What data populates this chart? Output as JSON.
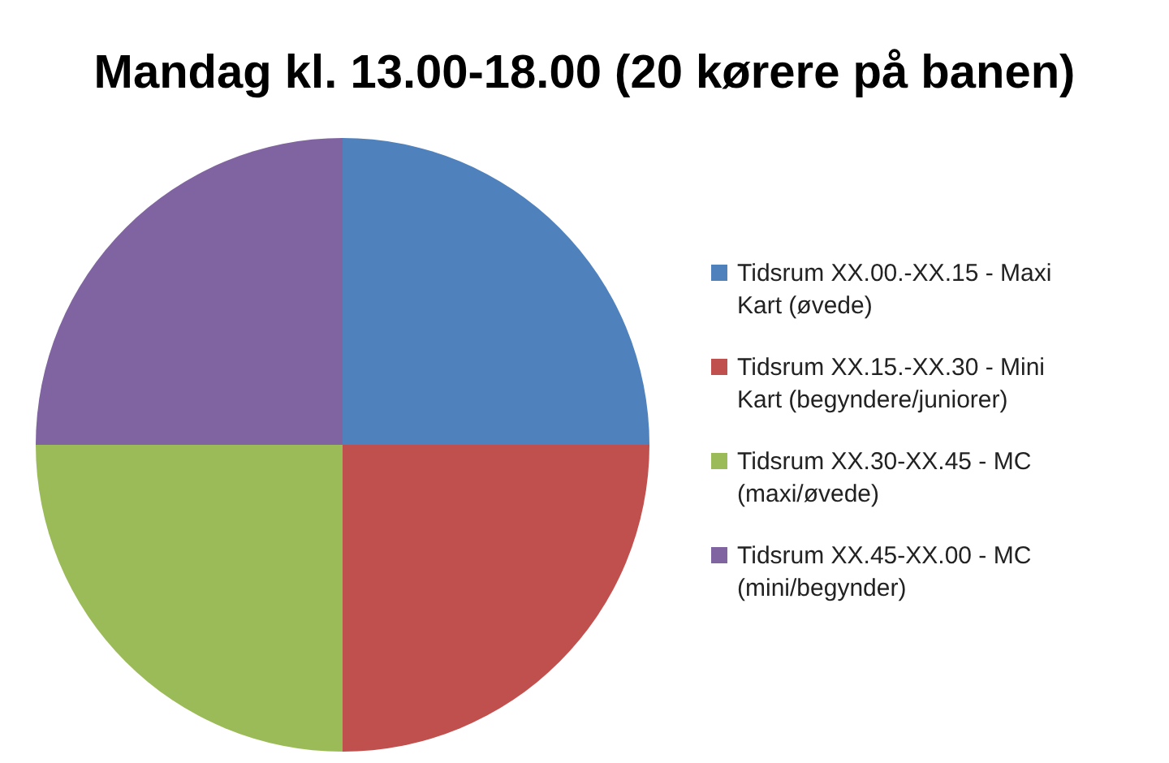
{
  "chart_data": {
    "type": "pie",
    "title": "Mandag kl. 13.00-18.00 (20 kørere på banen)",
    "categories": [
      "Tidsrum XX.00.-XX.15 - Maxi Kart (øvede)",
      "Tidsrum XX.15.-XX.30 - Mini Kart (begyndere/juniorer)",
      "Tidsrum XX.30-XX.45 - MC (maxi/øvede)",
      "Tidsrum XX.45-XX.00 - MC (mini/begynder)"
    ],
    "values": [
      25,
      25,
      25,
      25
    ],
    "colors": [
      "#4f81bd",
      "#c0504d",
      "#9bbb59",
      "#8064a2"
    ],
    "legend": "right"
  }
}
